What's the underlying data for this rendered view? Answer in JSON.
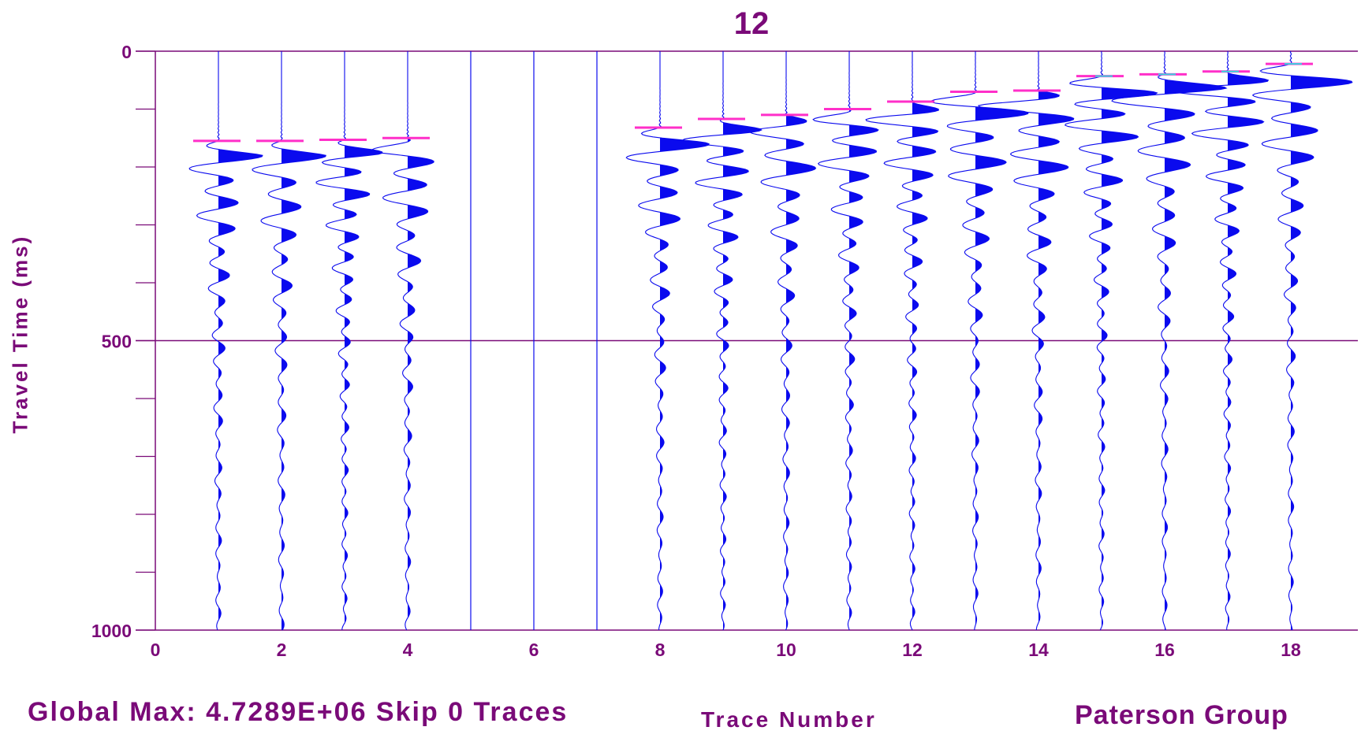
{
  "chart_data": {
    "type": "seismic-wiggle",
    "title": "12",
    "ylabel": "Travel Time (ms)",
    "xlabel": "Trace Number",
    "x_ticks": [
      0,
      2,
      4,
      6,
      8,
      10,
      12,
      14,
      16,
      18
    ],
    "y_ticks": [
      0,
      500,
      1000
    ],
    "xlim": [
      0,
      19
    ],
    "ylim": [
      1000,
      0
    ],
    "y_gridlines": [
      0,
      500,
      1000
    ],
    "y_minor_ticks": [
      0,
      100,
      200,
      300,
      400,
      500,
      600,
      700,
      800,
      900,
      1000
    ],
    "traces": [
      1,
      2,
      3,
      4,
      5,
      6,
      7,
      8,
      9,
      10,
      11,
      12,
      13,
      14,
      15,
      16,
      17,
      18
    ],
    "dead_traces": [
      5,
      6,
      7
    ],
    "first_break_picks": [
      {
        "trace": 1,
        "time_ms": 155
      },
      {
        "trace": 2,
        "time_ms": 155
      },
      {
        "trace": 3,
        "time_ms": 153
      },
      {
        "trace": 4,
        "time_ms": 150
      },
      {
        "trace": 8,
        "time_ms": 132
      },
      {
        "trace": 9,
        "time_ms": 117
      },
      {
        "trace": 10,
        "time_ms": 110
      },
      {
        "trace": 11,
        "time_ms": 100
      },
      {
        "trace": 12,
        "time_ms": 87
      },
      {
        "trace": 13,
        "time_ms": 70
      },
      {
        "trace": 14,
        "time_ms": 68
      },
      {
        "trace": 15,
        "time_ms": 43
      },
      {
        "trace": 16,
        "time_ms": 40
      },
      {
        "trace": 17,
        "time_ms": 35
      },
      {
        "trace": 18,
        "time_ms": 22
      }
    ],
    "colors": {
      "trace": "#0a0aee",
      "axis": "#7a0a78",
      "pick": "#ff2fc9",
      "pick_alt": "#36d6e0"
    }
  },
  "footer": {
    "left": "Global Max: 4.7289E+06 Skip 0 Traces",
    "right": "Paterson Group"
  }
}
